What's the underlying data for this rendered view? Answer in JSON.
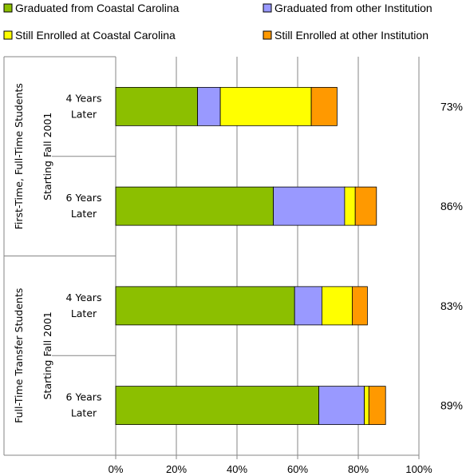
{
  "chart_data": {
    "type": "bar",
    "orientation": "horizontal",
    "stacked": true,
    "groups": [
      {
        "label": "First-Time, Full-Time Students Starting Fall 2001",
        "categories": [
          "4 Years Later",
          "6 Years Later"
        ]
      },
      {
        "label": "Full-Time Transfer Students Starting Fall 2001",
        "categories": [
          "4 Years Later",
          "6 Years Later"
        ]
      }
    ],
    "series": [
      {
        "name": "Graduated from Coastal Carolina",
        "color": "#8cbf00",
        "values": [
          27,
          52,
          59,
          67
        ]
      },
      {
        "name": "Graduated from other Institution",
        "color": "#9999ff",
        "values": [
          7.5,
          23.5,
          9,
          15
        ]
      },
      {
        "name": "Still Enrolled at Coastal Carolina",
        "color": "#ffff00",
        "values": [
          30,
          3.5,
          10,
          1.5
        ]
      },
      {
        "name": "Still Enrolled at other Institution",
        "color": "#ff9900",
        "values": [
          8.5,
          7,
          5,
          5.5
        ]
      }
    ],
    "totals": [
      "73%",
      "86%",
      "83%",
      "89%"
    ],
    "xlim": [
      0,
      100
    ],
    "xticks": [
      "0%",
      "20%",
      "40%",
      "60%",
      "80%",
      "100%"
    ],
    "grid": true,
    "legend": "top"
  }
}
